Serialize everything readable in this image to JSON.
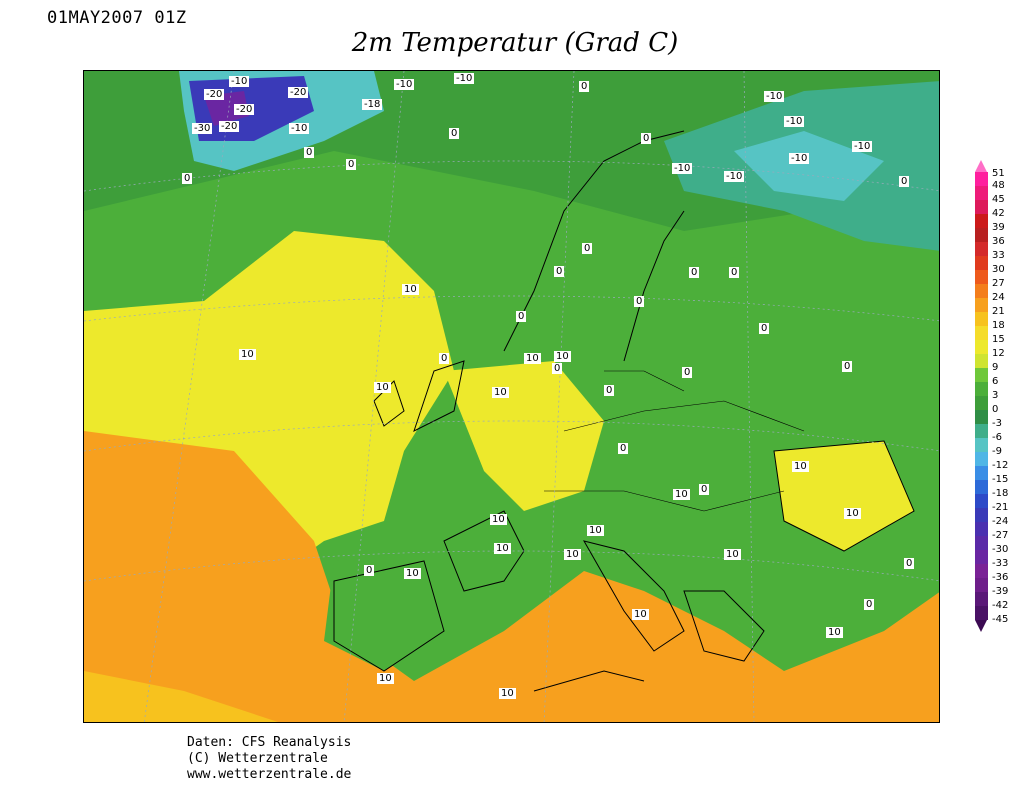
{
  "datetime": "01MAY2007 01Z",
  "title": "2m Temperatur (Grad C)",
  "map": {
    "contour_labels": [
      "-10",
      "-20",
      "-20",
      "-20",
      "-30",
      "-20",
      "-10",
      "-10",
      "-18",
      "-10",
      "-10",
      "0",
      "0",
      "0",
      "0",
      "-10",
      "-10",
      "-10",
      "-10",
      "-10",
      "0",
      "0",
      "0",
      "10",
      "10",
      "10",
      "10",
      "0",
      "10",
      "0",
      "0",
      "0",
      "0",
      "0",
      "0",
      "0",
      "0",
      "10",
      "0",
      "10",
      "0",
      "0",
      "0",
      "10",
      "10",
      "10",
      "10",
      "10",
      "10",
      "0",
      "10",
      "10",
      "0",
      "10",
      "10",
      "10",
      "0",
      "0",
      "10"
    ]
  },
  "legend": {
    "labels": [
      "51",
      "48",
      "45",
      "42",
      "39",
      "36",
      "33",
      "30",
      "27",
      "24",
      "21",
      "18",
      "15",
      "12",
      "9",
      "6",
      "3",
      "0",
      "-3",
      "-6",
      "-9",
      "-12",
      "-15",
      "-18",
      "-21",
      "-24",
      "-27",
      "-30",
      "-33",
      "-36",
      "-39",
      "-42",
      "-45"
    ],
    "colors": [
      "#ff1f9e",
      "#ee1c7a",
      "#dd1a5a",
      "#cc1a1a",
      "#b82020",
      "#d42a2a",
      "#e03b1e",
      "#ee5a1c",
      "#f47e1c",
      "#f7a01e",
      "#f7c21e",
      "#f5dc2a",
      "#ede92c",
      "#cfe430",
      "#6fc83a",
      "#4caf3a",
      "#3e9e3a",
      "#2f8e46",
      "#3fae8a",
      "#56c4c4",
      "#4fb6e6",
      "#3a8ee6",
      "#2d6ad8",
      "#2d4ac8",
      "#3a3ab8",
      "#4a30b0",
      "#5a2aa8",
      "#6a26a2",
      "#7a2296",
      "#6e1e8a",
      "#5a1878",
      "#4a1266"
    ],
    "top_color": "#ff6ec7",
    "bottom_color": "#3b0a52"
  },
  "credits": {
    "line1": "Daten: CFS Reanalysis",
    "line2": "(C) Wetterzentrale",
    "line3": "www.wetterzentrale.de"
  }
}
